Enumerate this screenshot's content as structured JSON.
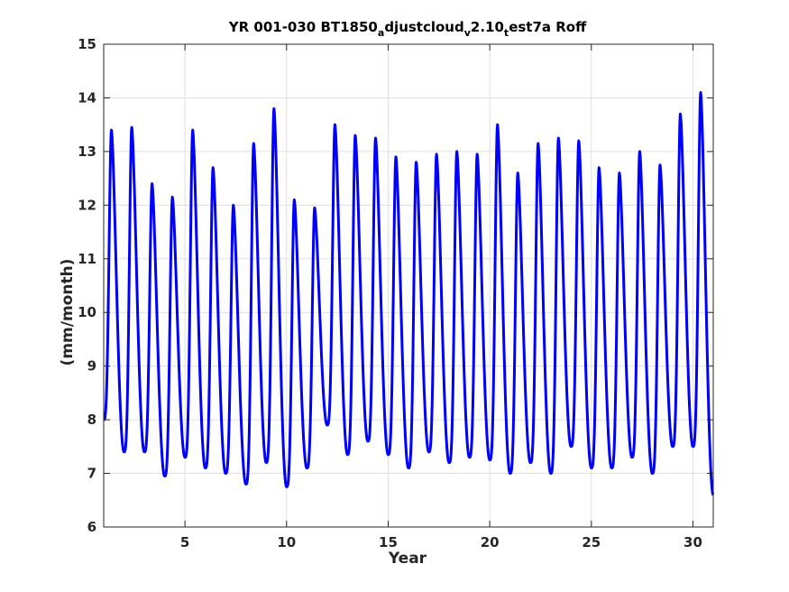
{
  "chart_data": {
    "type": "line",
    "title_parts": [
      {
        "text": "YR 001-030 BT1850",
        "sub": false
      },
      {
        "text": "a",
        "sub": true
      },
      {
        "text": "djustcloud",
        "sub": false
      },
      {
        "text": "v",
        "sub": true
      },
      {
        "text": "2.10",
        "sub": false
      },
      {
        "text": "t",
        "sub": true
      },
      {
        "text": "est7a Roff",
        "sub": false
      }
    ],
    "xlabel": "Year",
    "ylabel": "(mm/month)",
    "xlim": [
      1,
      31
    ],
    "ylim": [
      6,
      15
    ],
    "xticks": [
      5,
      10,
      15,
      20,
      25,
      30
    ],
    "yticks": [
      6,
      7,
      8,
      9,
      10,
      11,
      12,
      13,
      14,
      15
    ],
    "grid": true,
    "series_color": "#0000ff",
    "annual_cycle": {
      "years": [
        1,
        2,
        3,
        4,
        5,
        6,
        7,
        8,
        9,
        10,
        11,
        12,
        13,
        14,
        15,
        16,
        17,
        18,
        19,
        20,
        21,
        22,
        23,
        24,
        25,
        26,
        27,
        28,
        29,
        30
      ],
      "peak_values": [
        13.4,
        13.45,
        12.4,
        12.15,
        13.4,
        12.7,
        12.0,
        13.15,
        13.8,
        12.1,
        11.95,
        13.5,
        13.3,
        13.25,
        12.9,
        12.8,
        12.95,
        13.0,
        12.95,
        13.5,
        12.6,
        13.15,
        13.25,
        13.2,
        12.7,
        12.6,
        13.0,
        12.75,
        13.7,
        14.1
      ],
      "min_values": [
        7.4,
        7.4,
        6.95,
        7.3,
        7.1,
        7.0,
        6.8,
        7.2,
        6.75,
        7.1,
        7.9,
        7.35,
        7.6,
        7.35,
        7.1,
        7.4,
        7.2,
        7.3,
        7.25,
        7.0,
        7.2,
        7.0,
        7.5,
        7.1,
        7.1,
        7.3,
        7.0,
        7.5,
        7.5,
        6.9
      ]
    }
  }
}
